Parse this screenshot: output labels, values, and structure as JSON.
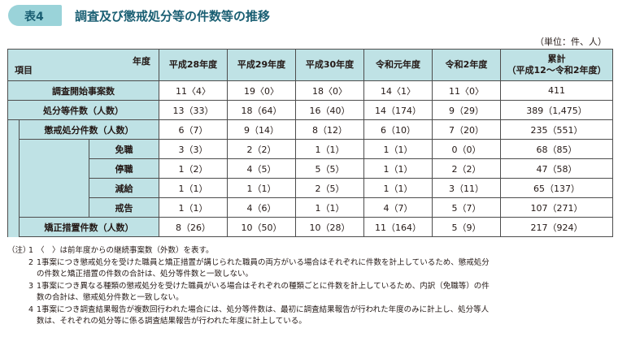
{
  "badge": "表4",
  "title": "調査及び懲戒処分等の件数等の推移",
  "unit": "（単位：件、人）",
  "header": {
    "nendo": "年度",
    "koumoku": "項目",
    "cols": [
      "平成28年度",
      "平成29年度",
      "平成30年度",
      "令和元年度",
      "令和2年度"
    ],
    "total_line1": "累計",
    "total_line2": "（平成12〜令和2年度）"
  },
  "rows": [
    {
      "label": "調査開始事案数",
      "values": [
        "11〈4〉",
        "19〈0〉",
        "18〈0〉",
        "14〈1〉",
        "11〈0〉",
        "411"
      ]
    },
    {
      "label": "処分等件数（人数）",
      "values": [
        "13（33）",
        "18（64）",
        "16（40）",
        "14（174）",
        "9（29）",
        "389（1,475）"
      ]
    },
    {
      "label": "懲戒処分件数（人数）",
      "values": [
        "6（7）",
        "9（14）",
        "8（12）",
        "6（10）",
        "7（20）",
        "235（551）"
      ]
    },
    {
      "label": "免職",
      "values": [
        "3（3）",
        "2（2）",
        "1（1）",
        "1（1）",
        "0（0）",
        "68（85）"
      ]
    },
    {
      "label": "停職",
      "values": [
        "1（2）",
        "4（5）",
        "5（5）",
        "1（1）",
        "2（2）",
        "47（58）"
      ]
    },
    {
      "label": "減給",
      "values": [
        "1（1）",
        "1（1）",
        "2（5）",
        "1（1）",
        "3（11）",
        "65（137）"
      ]
    },
    {
      "label": "戒告",
      "values": [
        "1（1）",
        "4（6）",
        "1（1）",
        "4（7）",
        "5（7）",
        "107（271）"
      ]
    },
    {
      "label": "矯正措置件数（人数）",
      "values": [
        "8（26）",
        "10（50）",
        "10（28）",
        "11（164）",
        "5（9）",
        "217（924）"
      ]
    }
  ],
  "notes": {
    "prefix": "（注）",
    "items": [
      {
        "n": "1",
        "lines": [
          "〈　〉は前年度からの継続事案数（外数）を表す。"
        ]
      },
      {
        "n": "2",
        "lines": [
          "1事案につき懲戒処分を受けた職員と矯正措置が講じられた職員の両方がいる場合はそれぞれに件数を計上しているため、懲戒処分",
          "の件数と矯正措置の件数の合計は、処分等件数と一致しない。"
        ]
      },
      {
        "n": "3",
        "lines": [
          "1事案につき異なる種類の懲戒処分を受けた職員がいる場合はそれぞれの種類ごとに件数を計上しているため、内訳（免職等）の件",
          "数の合計は、懲戒処分件数と一致しない。"
        ]
      },
      {
        "n": "4",
        "lines": [
          "1事案につき調査結果報告が複数回行われた場合には、処分等件数は、最初に調査結果報告が行われた年度のみに計上し、処分等人",
          "数は、それぞれの処分等に係る調査結果報告が行われた年度に計上している。"
        ]
      }
    ]
  },
  "colors": {
    "teal_light": "#bfe2e5",
    "badge": "#9ad3d9",
    "title": "#1a5f73"
  }
}
